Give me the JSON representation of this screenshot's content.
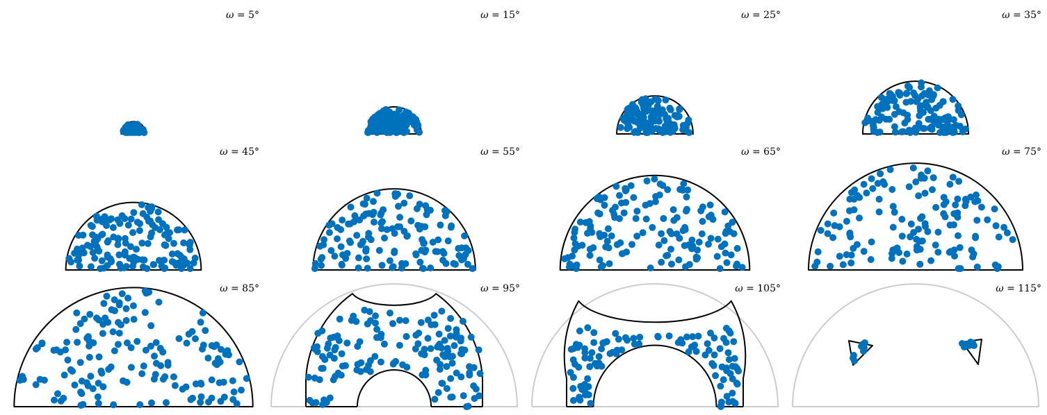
{
  "chart_data": {
    "type": "scatter",
    "layout": "grid of 12 half-disc scatter plots (3 rows x 4 columns)",
    "marker_color": "#0072bd",
    "boundary_color": "#000000",
    "reference_circle_color": "#cccccc",
    "panels": [
      {
        "symbol": "ω",
        "value_text": " = 5°",
        "omega": 5,
        "radius": 0.1,
        "points": 60,
        "inner_radius": 0,
        "outer_clip": false,
        "region": "disc"
      },
      {
        "symbol": "ω",
        "value_text": " = 15°",
        "omega": 15,
        "radius": 0.22,
        "points": 110,
        "inner_radius": 0,
        "outer_clip": false,
        "region": "disc"
      },
      {
        "symbol": "ω",
        "value_text": " = 25°",
        "omega": 25,
        "radius": 0.31,
        "points": 130,
        "inner_radius": 0,
        "outer_clip": false,
        "region": "disc"
      },
      {
        "symbol": "ω",
        "value_text": " = 35°",
        "omega": 35,
        "radius": 0.43,
        "points": 130,
        "inner_radius": 0,
        "outer_clip": false,
        "region": "disc"
      },
      {
        "symbol": "ω",
        "value_text": " = 45°",
        "omega": 45,
        "radius": 0.55,
        "points": 150,
        "inner_radius": 0,
        "outer_clip": false,
        "region": "disc"
      },
      {
        "symbol": "ω",
        "value_text": " = 55°",
        "omega": 55,
        "radius": 0.66,
        "points": 140,
        "inner_radius": 0,
        "outer_clip": false,
        "region": "disc"
      },
      {
        "symbol": "ω",
        "value_text": " = 65°",
        "omega": 65,
        "radius": 0.77,
        "points": 150,
        "inner_radius": 0,
        "outer_clip": false,
        "region": "disc"
      },
      {
        "symbol": "ω",
        "value_text": " = 75°",
        "omega": 75,
        "radius": 0.87,
        "points": 140,
        "inner_radius": 0,
        "outer_clip": false,
        "region": "disc"
      },
      {
        "symbol": "ω",
        "value_text": " = 85°",
        "omega": 85,
        "radius": 0.97,
        "points": 160,
        "inner_radius": 0,
        "outer_clip": false,
        "region": "disc"
      },
      {
        "symbol": "ω",
        "value_text": " = 95°",
        "omega": 95,
        "radius": 1.0,
        "points": 150,
        "inner_radius": 0.3,
        "outer_clip": true,
        "region": "band"
      },
      {
        "symbol": "ω",
        "value_text": " = 105°",
        "omega": 105,
        "radius": 1.0,
        "points": 110,
        "inner_radius": 0.5,
        "outer_clip": true,
        "region": "band"
      },
      {
        "symbol": "ω",
        "value_text": " = 115°",
        "omega": 115,
        "radius": 1.0,
        "points": 16,
        "inner_radius": 0,
        "outer_clip": true,
        "region": "triangles"
      }
    ]
  }
}
